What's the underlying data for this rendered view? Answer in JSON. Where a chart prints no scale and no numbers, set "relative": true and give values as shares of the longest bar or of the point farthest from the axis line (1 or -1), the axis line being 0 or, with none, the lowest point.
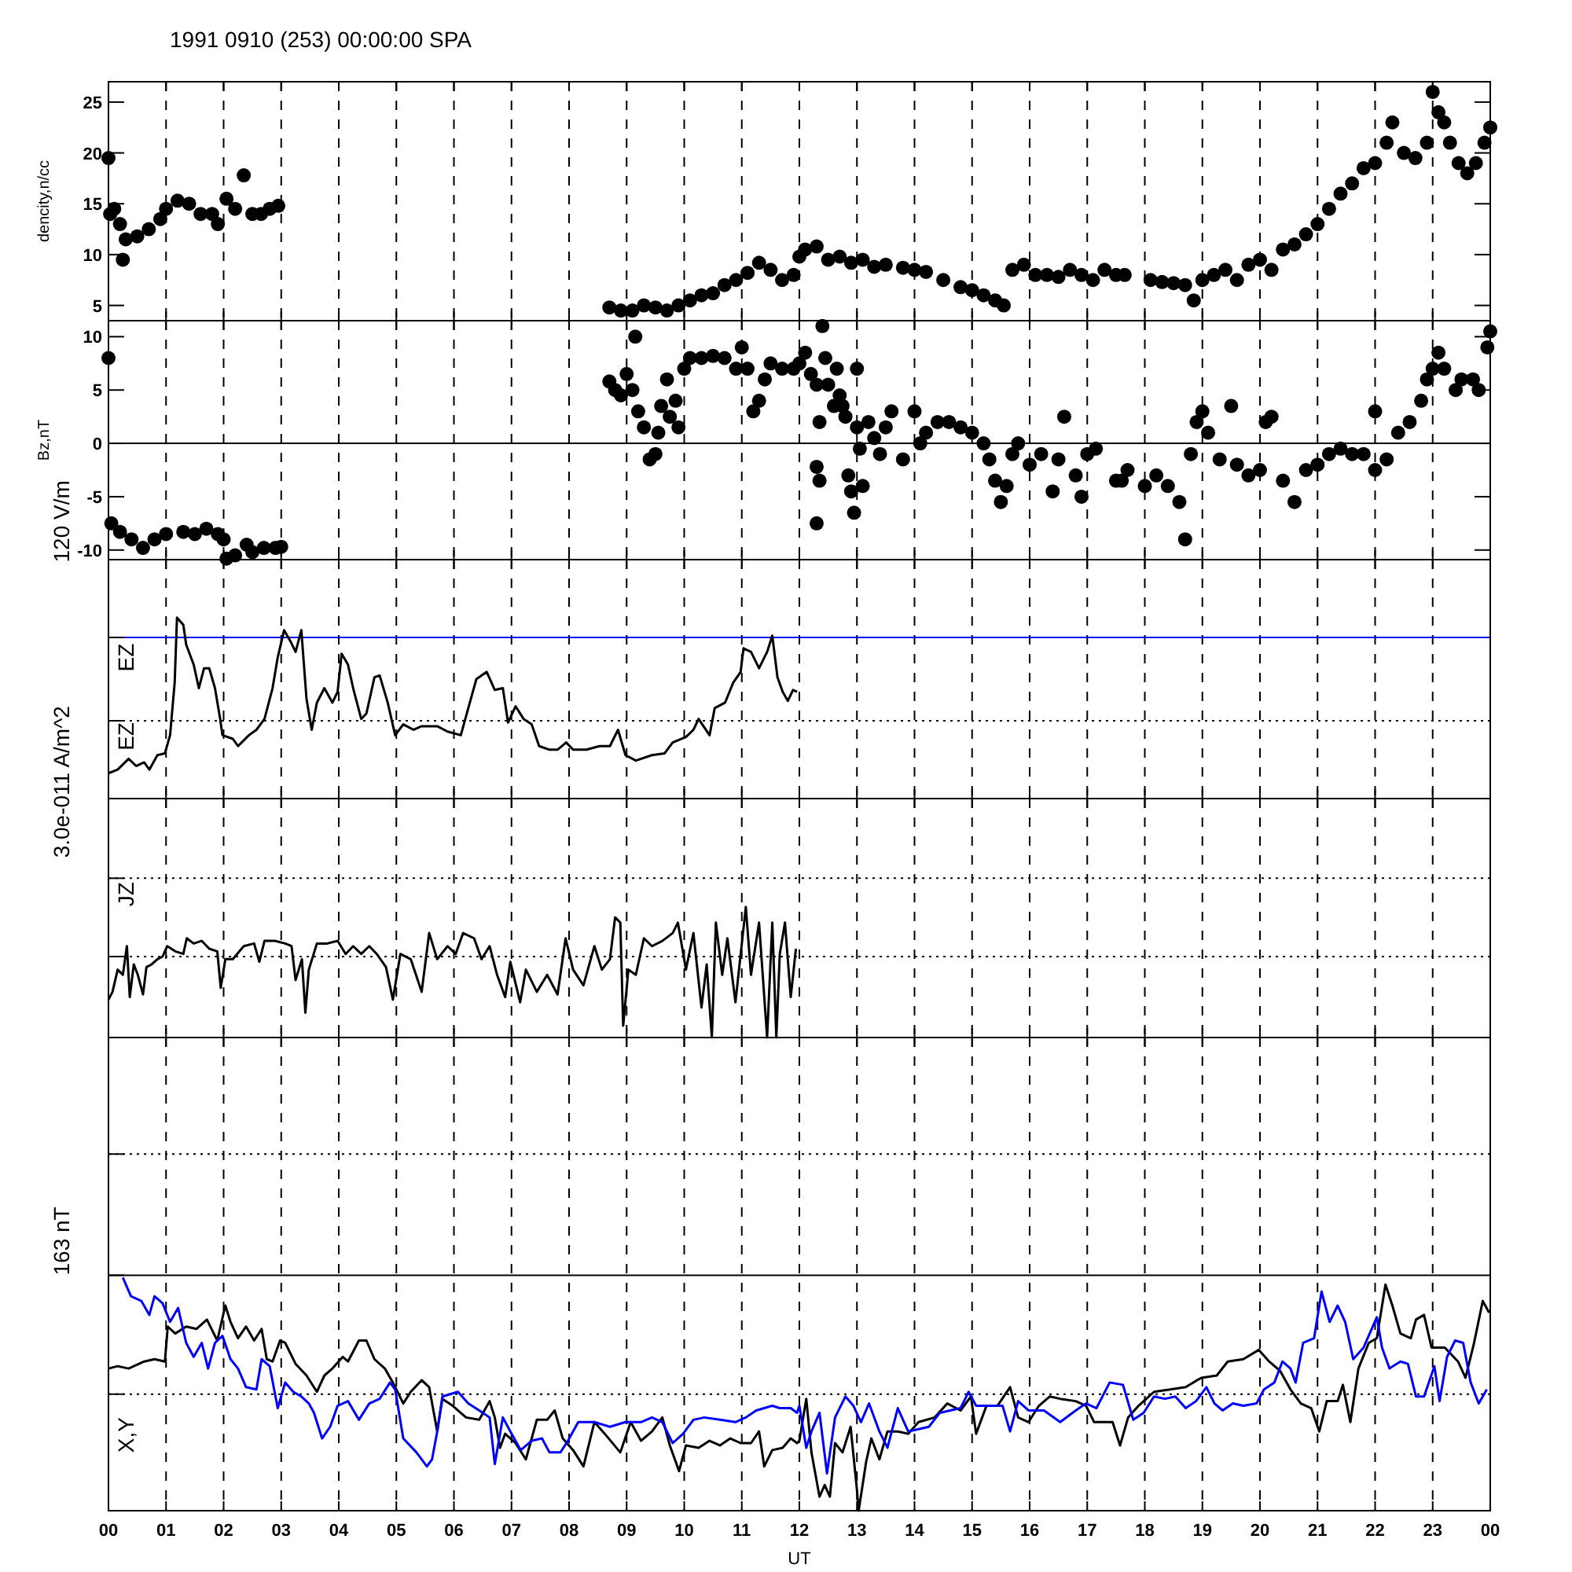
{
  "chart_data": [
    {
      "type": "scatter",
      "title": "1991 0910 (253) 00:00:00 SPA",
      "ylabel": "dencity,n/cc",
      "marker": "circle",
      "grid": "x",
      "tick_labels": "y",
      "xlim": [
        0,
        24
      ],
      "ylim": [
        3.5,
        27
      ],
      "yticks": [
        5,
        10,
        15,
        20,
        25
      ],
      "xticks": [
        {
          "value": 0,
          "label": null
        },
        {
          "value": 1,
          "label": null
        },
        {
          "value": 2,
          "label": null
        },
        {
          "value": 3,
          "label": null
        },
        {
          "value": 4,
          "label": null
        },
        {
          "value": 5,
          "label": null
        },
        {
          "value": 6,
          "label": null
        },
        {
          "value": 7,
          "label": null
        },
        {
          "value": 8,
          "label": null
        },
        {
          "value": 9,
          "label": null
        },
        {
          "value": 10,
          "label": null
        },
        {
          "value": 11,
          "label": null
        },
        {
          "value": 12,
          "label": null
        },
        {
          "value": 13,
          "label": null
        },
        {
          "value": 14,
          "label": null
        },
        {
          "value": 15,
          "label": null
        },
        {
          "value": 16,
          "label": null
        },
        {
          "value": 17,
          "label": null
        },
        {
          "value": 18,
          "label": null
        },
        {
          "value": 19,
          "label": null
        },
        {
          "value": 20,
          "label": null
        },
        {
          "value": 21,
          "label": null
        },
        {
          "value": 22,
          "label": null
        },
        {
          "value": 23,
          "label": null
        },
        {
          "value": 24,
          "label": null
        }
      ],
      "series": [
        {
          "color": "#000000",
          "x": [
            0.0,
            0.03,
            0.1,
            0.2,
            0.25,
            0.3,
            0.5,
            0.7,
            0.9,
            1.0,
            1.2,
            1.4,
            1.6,
            1.8,
            1.9,
            2.05,
            2.2,
            2.35,
            2.5,
            2.65,
            2.8,
            2.95,
            8.7,
            8.9,
            9.1,
            9.3,
            9.5,
            9.7,
            9.9,
            10.1,
            10.3,
            10.5,
            10.7,
            10.9,
            11.1,
            11.3,
            11.5,
            11.7,
            11.9,
            12.0,
            12.1,
            12.3,
            12.5,
            12.7,
            12.9,
            13.1,
            13.3,
            13.5,
            13.8,
            14.0,
            14.2,
            14.5,
            14.8,
            15.0,
            15.2,
            15.4,
            15.55,
            15.7,
            15.9,
            16.1,
            16.3,
            16.5,
            16.7,
            16.9,
            17.1,
            17.3,
            17.5,
            17.65,
            18.1,
            18.3,
            18.5,
            18.7,
            18.85,
            19.0,
            19.2,
            19.4,
            19.6,
            19.8,
            20.0,
            20.2,
            20.4,
            20.6,
            20.8,
            21.0,
            21.2,
            21.4,
            21.6,
            21.8,
            22.0,
            22.2,
            22.3,
            22.5,
            22.7,
            22.9,
            23.0,
            23.1,
            23.2,
            23.3,
            23.45,
            23.6,
            23.75,
            23.9,
            24.0
          ],
          "values": [
            19.5,
            14,
            14.5,
            13,
            9.5,
            11.5,
            11.8,
            12.5,
            13.5,
            14.5,
            15.3,
            15,
            14,
            14,
            13,
            15.5,
            14.5,
            17.8,
            14,
            14,
            14.5,
            14.8,
            4.8,
            4.5,
            4.5,
            5,
            4.8,
            4.5,
            5,
            5.5,
            6,
            6.2,
            7,
            7.5,
            8.2,
            9.2,
            8.5,
            7.5,
            8,
            9.8,
            10.5,
            10.8,
            9.5,
            9.8,
            9.2,
            9.5,
            8.8,
            9,
            8.7,
            8.5,
            8.3,
            7.5,
            6.8,
            6.5,
            6,
            5.5,
            5,
            8.5,
            9,
            8,
            8,
            7.8,
            8.5,
            8,
            7.5,
            8.5,
            8,
            8,
            7.5,
            7.3,
            7.2,
            7,
            5.5,
            7.5,
            8,
            8.5,
            7.5,
            9,
            9.5,
            8.5,
            10.5,
            11,
            12,
            13,
            14.5,
            16,
            17,
            18.5,
            19,
            21,
            23,
            20,
            19.5,
            21,
            26,
            24,
            23,
            21,
            19,
            18,
            19,
            21,
            22.5
          ]
        }
      ]
    },
    {
      "type": "scatter",
      "ylabel": "Bz,nT",
      "marker": "circle",
      "grid": "x",
      "tick_labels": "y",
      "xlim": [
        0,
        24
      ],
      "ylim": [
        -10.9,
        11.5
      ],
      "yticks": [
        -10,
        -5,
        0,
        5,
        10
      ],
      "xticks": [
        {
          "value": 0,
          "label": null
        },
        {
          "value": 1,
          "label": null
        },
        {
          "value": 2,
          "label": null
        },
        {
          "value": 3,
          "label": null
        },
        {
          "value": 4,
          "label": null
        },
        {
          "value": 5,
          "label": null
        },
        {
          "value": 6,
          "label": null
        },
        {
          "value": 7,
          "label": null
        },
        {
          "value": 8,
          "label": null
        },
        {
          "value": 9,
          "label": null
        },
        {
          "value": 10,
          "label": null
        },
        {
          "value": 11,
          "label": null
        },
        {
          "value": 12,
          "label": null
        },
        {
          "value": 13,
          "label": null
        },
        {
          "value": 14,
          "label": null
        },
        {
          "value": 15,
          "label": null
        },
        {
          "value": 16,
          "label": null
        },
        {
          "value": 17,
          "label": null
        },
        {
          "value": 18,
          "label": null
        },
        {
          "value": 19,
          "label": null
        },
        {
          "value": 20,
          "label": null
        },
        {
          "value": 21,
          "label": null
        },
        {
          "value": 22,
          "label": null
        },
        {
          "value": 23,
          "label": null
        },
        {
          "value": 24,
          "label": null
        }
      ],
      "ref_lines": [
        {
          "axis": "y",
          "value": 0,
          "color": "#000000",
          "line_style": "solid"
        }
      ],
      "series": [
        {
          "color": "#000000",
          "x": [
            0.0,
            0.05,
            0.2,
            0.4,
            0.6,
            0.8,
            1.0,
            1.3,
            1.5,
            1.7,
            1.9,
            2.0,
            2.05,
            2.2,
            2.4,
            2.5,
            2.7,
            2.9,
            3.0,
            8.7,
            8.8,
            8.9,
            9.0,
            9.1,
            9.15,
            9.2,
            9.3,
            9.4,
            9.5,
            9.55,
            9.6,
            9.7,
            9.75,
            9.85,
            9.9,
            10.0,
            10.1,
            10.3,
            10.5,
            10.7,
            10.9,
            11.0,
            11.1,
            11.2,
            11.3,
            11.4,
            11.5,
            11.7,
            11.9,
            12.0,
            12.1,
            12.2,
            12.3,
            12.35,
            12.4,
            12.45,
            12.5,
            12.6,
            12.65,
            12.7,
            12.75,
            12.8,
            12.3,
            12.35,
            12.3,
            12.85,
            12.9,
            12.95,
            13.0,
            13.0,
            13.05,
            13.1,
            13.2,
            13.3,
            13.4,
            13.5,
            13.6,
            13.8,
            14.0,
            14.1,
            14.2,
            14.4,
            14.6,
            14.8,
            15.0,
            15.2,
            15.3,
            15.4,
            15.5,
            15.6,
            15.7,
            15.8,
            16.0,
            16.2,
            16.4,
            16.5,
            16.6,
            16.8,
            16.9,
            17.0,
            17.15,
            17.5,
            17.6,
            17.7,
            18.0,
            18.2,
            18.4,
            18.6,
            18.7,
            18.8,
            18.9,
            19.0,
            19.1,
            19.3,
            19.5,
            19.6,
            19.8,
            20.0,
            20.1,
            20.2,
            20.4,
            20.6,
            20.8,
            21.0,
            21.2,
            21.4,
            21.6,
            21.8,
            22.0,
            22.0,
            22.2,
            22.4,
            22.6,
            22.8,
            22.9,
            23.0,
            23.1,
            23.2,
            23.4,
            23.5,
            23.7,
            23.8,
            23.95,
            24.0
          ],
          "values": [
            8,
            -7.5,
            -8.3,
            -9,
            -9.8,
            -9,
            -8.5,
            -8.3,
            -8.5,
            -8,
            -8.5,
            -9,
            -10.8,
            -10.5,
            -9.5,
            -10.2,
            -9.8,
            -9.8,
            -9.7,
            5.8,
            5,
            4.5,
            6.5,
            5,
            10,
            3,
            1.5,
            -1.5,
            -1,
            1,
            3.5,
            6,
            2.5,
            4,
            1.5,
            7,
            8,
            8,
            8.2,
            8,
            7,
            9,
            7,
            3,
            4,
            6,
            7.5,
            7,
            7,
            7.5,
            8.5,
            6.5,
            5.5,
            2,
            11,
            8,
            5.5,
            3.5,
            7,
            4.5,
            3.5,
            2.5,
            -2.2,
            -3.5,
            -7.5,
            -3,
            -4.5,
            -6.5,
            7,
            1.5,
            -0.5,
            -4,
            2,
            0.5,
            -1,
            1.5,
            3,
            -1.5,
            3,
            0,
            1,
            2,
            2,
            1.5,
            1,
            0,
            -1.5,
            -3.5,
            -5.5,
            -4,
            -1,
            0,
            -2,
            -1,
            -4.5,
            -1.5,
            2.5,
            -3,
            -5,
            -1,
            -0.5,
            -3.5,
            -3.5,
            -2.5,
            -4,
            -3,
            -4,
            -5.5,
            -9,
            -1,
            2,
            3,
            1,
            -1.5,
            3.5,
            -2,
            -3,
            -2.5,
            2,
            2.5,
            -3.5,
            -5.5,
            -2.5,
            -2,
            -1,
            -0.5,
            -1,
            -1,
            -2.5,
            3,
            -1.5,
            1,
            2,
            4,
            6,
            7,
            8.5,
            7,
            5,
            6,
            6,
            5,
            9,
            10.5
          ]
        }
      ]
    },
    {
      "type": "line",
      "ylabel": "EZ",
      "relative": true,
      "grid": "x",
      "tick_labels": false,
      "xlim": [
        0,
        24
      ],
      "xticks": [
        {
          "value": 0,
          "label": null
        },
        {
          "value": 1,
          "label": null
        },
        {
          "value": 2,
          "label": null
        },
        {
          "value": 3,
          "label": null
        },
        {
          "value": 4,
          "label": null
        },
        {
          "value": 5,
          "label": null
        },
        {
          "value": 6,
          "label": null
        },
        {
          "value": 7,
          "label": null
        },
        {
          "value": 8,
          "label": null
        },
        {
          "value": 9,
          "label": null
        },
        {
          "value": 10,
          "label": null
        },
        {
          "value": 11,
          "label": null
        },
        {
          "value": 12,
          "label": null
        },
        {
          "value": 13,
          "label": null
        },
        {
          "value": 14,
          "label": null
        },
        {
          "value": 15,
          "label": null
        },
        {
          "value": 16,
          "label": null
        },
        {
          "value": 17,
          "label": null
        },
        {
          "value": 18,
          "label": null
        },
        {
          "value": 19,
          "label": null
        },
        {
          "value": 20,
          "label": null
        },
        {
          "value": 21,
          "label": null
        },
        {
          "value": 22,
          "label": null
        },
        {
          "value": 23,
          "label": null
        },
        {
          "value": 24,
          "label": null
        }
      ],
      "ref_lines": [
        {
          "axis": "y",
          "value": 0.89,
          "color": "#0000ff",
          "line_style": "solid"
        },
        {
          "axis": "y",
          "value": 0.43,
          "color": "#000000",
          "line_style": "dotted"
        }
      ],
      "annotations": [
        "120 V/m",
        "EZ"
      ],
      "series": [
        {
          "color": "#000000",
          "x": [
            0,
            0.16,
            0.35,
            0.48,
            0.62,
            0.71,
            0.85,
            0.98,
            1.07,
            1.15,
            1.19,
            1.3,
            1.35,
            1.48,
            1.57,
            1.66,
            1.75,
            1.85,
            1.94,
            1.98,
            2.16,
            2.25,
            2.44,
            2.57,
            2.71,
            2.85,
            2.94,
            3.05,
            3.16,
            3.25,
            3.35,
            3.44,
            3.53,
            3.62,
            3.75,
            3.89,
            3.98,
            4.05,
            4.16,
            4.25,
            4.39,
            4.48,
            4.62,
            4.71,
            4.85,
            4.98,
            5.12,
            5.3,
            5.44,
            5.71,
            5.89,
            6.12,
            6.25,
            6.39,
            6.57,
            6.71,
            6.85,
            6.94,
            7.07,
            7.21,
            7.35,
            7.48,
            7.66,
            7.8,
            7.95,
            8.07,
            8.3,
            8.53,
            8.71,
            8.85,
            8.98,
            9.16,
            9.44,
            9.66,
            9.8,
            10.03,
            10.16,
            10.25,
            10.44,
            10.53,
            10.71,
            10.85,
            10.98,
            11.03,
            11.16,
            11.3,
            11.44,
            11.53,
            11.62,
            11.71,
            11.8,
            11.89,
            11.96
          ],
          "values": [
            0.14,
            0.16,
            0.22,
            0.18,
            0.2,
            0.16,
            0.24,
            0.25,
            0.35,
            0.64,
            1,
            0.96,
            0.85,
            0.74,
            0.61,
            0.72,
            0.72,
            0.61,
            0.44,
            0.35,
            0.33,
            0.29,
            0.35,
            0.38,
            0.44,
            0.61,
            0.78,
            0.93,
            0.87,
            0.81,
            0.93,
            0.55,
            0.38,
            0.53,
            0.61,
            0.53,
            0.59,
            0.8,
            0.74,
            0.61,
            0.44,
            0.47,
            0.67,
            0.68,
            0.53,
            0.35,
            0.41,
            0.38,
            0.4,
            0.4,
            0.37,
            0.35,
            0.5,
            0.66,
            0.7,
            0.6,
            0.61,
            0.42,
            0.51,
            0.44,
            0.41,
            0.29,
            0.27,
            0.27,
            0.31,
            0.27,
            0.27,
            0.29,
            0.29,
            0.38,
            0.24,
            0.21,
            0.24,
            0.25,
            0.31,
            0.34,
            0.38,
            0.44,
            0.35,
            0.5,
            0.53,
            0.64,
            0.7,
            0.83,
            0.81,
            0.72,
            0.81,
            0.9,
            0.67,
            0.59,
            0.54,
            0.6,
            0.59
          ]
        }
      ]
    },
    {
      "type": "line",
      "ylabel": "JZ",
      "relative": true,
      "grid": "x",
      "tick_labels": false,
      "xlim": [
        0,
        24
      ],
      "xticks": [
        {
          "value": 0,
          "label": null
        },
        {
          "value": 1,
          "label": null
        },
        {
          "value": 2,
          "label": null
        },
        {
          "value": 3,
          "label": null
        },
        {
          "value": 4,
          "label": null
        },
        {
          "value": 5,
          "label": null
        },
        {
          "value": 6,
          "label": null
        },
        {
          "value": 7,
          "label": null
        },
        {
          "value": 8,
          "label": null
        },
        {
          "value": 9,
          "label": null
        },
        {
          "value": 10,
          "label": null
        },
        {
          "value": 11,
          "label": null
        },
        {
          "value": 12,
          "label": null
        },
        {
          "value": 13,
          "label": null
        },
        {
          "value": 14,
          "label": null
        },
        {
          "value": 15,
          "label": null
        },
        {
          "value": 16,
          "label": null
        },
        {
          "value": 17,
          "label": null
        },
        {
          "value": 18,
          "label": null
        },
        {
          "value": 19,
          "label": null
        },
        {
          "value": 20,
          "label": null
        },
        {
          "value": 21,
          "label": null
        },
        {
          "value": 22,
          "label": null
        },
        {
          "value": 23,
          "label": null
        },
        {
          "value": 24,
          "label": null
        }
      ],
      "ref_lines": [
        {
          "axis": "y",
          "value": 1.22,
          "color": "#000000",
          "line_style": "dotted"
        },
        {
          "axis": "y",
          "value": 0.62,
          "color": "#000000",
          "line_style": "dotted"
        }
      ],
      "annotations": [
        "3.0e-011 A/m^2"
      ],
      "series": [
        {
          "color": "#000000",
          "x": [
            0,
            0.07,
            0.16,
            0.25,
            0.32,
            0.37,
            0.44,
            0.51,
            0.6,
            0.66,
            0.75,
            0.85,
            0.94,
            1.02,
            1.16,
            1.3,
            1.36,
            1.48,
            1.62,
            1.75,
            1.89,
            1.95,
            2.03,
            2.16,
            2.35,
            2.53,
            2.62,
            2.71,
            2.89,
            3.07,
            3.18,
            3.25,
            3.36,
            3.42,
            3.48,
            3.62,
            3.8,
            3.98,
            4.12,
            4.25,
            4.39,
            4.53,
            4.66,
            4.82,
            4.94,
            5.07,
            5.25,
            5.44,
            5.57,
            5.71,
            5.89,
            6.03,
            6.16,
            6.35,
            6.48,
            6.62,
            6.75,
            6.89,
            6.98,
            7.15,
            7.25,
            7.44,
            7.62,
            7.8,
            7.94,
            8.07,
            8.25,
            8.44,
            8.57,
            8.71,
            8.8,
            8.89,
            8.94,
            9.03,
            9.16,
            9.3,
            9.44,
            9.62,
            9.8,
            9.89,
            10.03,
            10.16,
            10.3,
            10.39,
            10.48,
            10.55,
            10.66,
            10.75,
            10.89,
            11.07,
            11.16,
            11.3,
            11.44,
            11.53,
            11.6,
            11.66,
            11.75,
            11.85,
            11.94
          ],
          "values": [
            0.29,
            0.35,
            0.52,
            0.48,
            0.7,
            0.31,
            0.56,
            0.48,
            0.33,
            0.54,
            0.56,
            0.6,
            0.62,
            0.7,
            0.66,
            0.64,
            0.76,
            0.72,
            0.74,
            0.68,
            0.66,
            0.38,
            0.6,
            0.6,
            0.7,
            0.72,
            0.58,
            0.74,
            0.74,
            0.72,
            0.7,
            0.44,
            0.6,
            0.19,
            0.52,
            0.72,
            0.72,
            0.74,
            0.64,
            0.7,
            0.64,
            0.7,
            0.64,
            0.54,
            0.29,
            0.64,
            0.6,
            0.35,
            0.8,
            0.6,
            0.7,
            0.64,
            0.8,
            0.76,
            0.6,
            0.7,
            0.48,
            0.31,
            0.58,
            0.27,
            0.52,
            0.35,
            0.48,
            0.33,
            0.76,
            0.52,
            0.4,
            0.7,
            0.52,
            0.6,
            0.92,
            0.88,
            0.09,
            0.52,
            0.48,
            0.76,
            0.7,
            0.74,
            0.8,
            0.88,
            0.52,
            0.8,
            0.23,
            0.56,
            0,
            0.88,
            0.48,
            0.76,
            0.27,
            1,
            0.48,
            0.88,
            0,
            0.88,
            0,
            0.64,
            0.88,
            0.31,
            0.68
          ]
        }
      ]
    },
    {
      "type": "line",
      "ylabel": "X,Y",
      "xlabel": "UT",
      "relative": true,
      "grid": "x",
      "tick_labels": "x",
      "xlim": [
        0,
        24
      ],
      "xticks": [
        {
          "value": 0,
          "label": "00"
        },
        {
          "value": 1,
          "label": "01"
        },
        {
          "value": 2,
          "label": "02"
        },
        {
          "value": 3,
          "label": "03"
        },
        {
          "value": 4,
          "label": "04"
        },
        {
          "value": 5,
          "label": "05"
        },
        {
          "value": 6,
          "label": "06"
        },
        {
          "value": 7,
          "label": "07"
        },
        {
          "value": 8,
          "label": "08"
        },
        {
          "value": 9,
          "label": "09"
        },
        {
          "value": 10,
          "label": "10"
        },
        {
          "value": 11,
          "label": "11"
        },
        {
          "value": 12,
          "label": "12"
        },
        {
          "value": 13,
          "label": "13"
        },
        {
          "value": 14,
          "label": "14"
        },
        {
          "value": 15,
          "label": "15"
        },
        {
          "value": 16,
          "label": "16"
        },
        {
          "value": 17,
          "label": "17"
        },
        {
          "value": 18,
          "label": "18"
        },
        {
          "value": 19,
          "label": "19"
        },
        {
          "value": 20,
          "label": "20"
        },
        {
          "value": 21,
          "label": "21"
        },
        {
          "value": 22,
          "label": "22"
        },
        {
          "value": 23,
          "label": "23"
        },
        {
          "value": 24,
          "label": "00"
        }
      ],
      "ref_lines": [
        {
          "axis": "y",
          "value": 1.53,
          "color": "#000000",
          "line_style": "dotted"
        },
        {
          "axis": "y",
          "value": 1.01,
          "color": "#000000",
          "line_style": "solid"
        },
        {
          "axis": "y",
          "value": 0.5,
          "color": "#000000",
          "line_style": "dotted"
        }
      ],
      "annotations": [
        "163 nT"
      ],
      "series": [
        {
          "color": "#000000",
          "x": [
            0,
            0.16,
            0.35,
            0.62,
            0.8,
            0.98,
            1.03,
            1.16,
            1.35,
            1.53,
            1.71,
            1.89,
            2.03,
            2.12,
            2.25,
            2.39,
            2.53,
            2.66,
            2.75,
            2.85,
            2.98,
            3.07,
            3.25,
            3.44,
            3.62,
            3.75,
            3.89,
            4.07,
            4.16,
            4.35,
            4.48,
            4.62,
            4.8,
            4.94,
            5.12,
            5.25,
            5.44,
            5.57,
            5.71,
            5.8,
            5.98,
            6.21,
            6.44,
            6.62,
            6.71,
            6.8,
            6.89,
            7.07,
            7.25,
            7.44,
            7.62,
            7.75,
            7.89,
            8.07,
            8.25,
            8.44,
            8.62,
            8.89,
            9.07,
            9.25,
            9.44,
            9.62,
            9.75,
            9.91,
            10.03,
            10.25,
            10.44,
            10.62,
            10.8,
            10.98,
            11.16,
            11.3,
            11.39,
            11.53,
            11.71,
            11.85,
            11.96,
            12.0,
            12.12,
            12.21,
            12.35,
            12.44,
            12.53,
            12.62,
            12.75,
            12.89,
            13.0,
            13.03,
            13.16,
            13.25,
            13.39,
            13.53,
            13.71,
            13.89,
            14.07,
            14.35,
            14.57,
            14.8,
            14.98,
            15.07,
            15.25,
            15.44,
            15.66,
            15.8,
            15.98,
            16.16,
            16.35,
            16.53,
            16.8,
            16.98,
            17.12,
            17.44,
            17.57,
            17.71,
            17.89,
            18.16,
            18.44,
            18.71,
            18.98,
            19.25,
            19.44,
            19.71,
            19.98,
            20.16,
            20.35,
            20.53,
            20.71,
            20.89,
            21.03,
            21.16,
            21.35,
            21.44,
            21.57,
            21.71,
            21.89,
            22.03,
            22.18,
            22.3,
            22.44,
            22.62,
            22.71,
            22.85,
            22.98,
            23.21,
            23.44,
            23.57,
            23.71,
            23.87,
            23.98
          ],
          "values": [
            0.61,
            0.62,
            0.61,
            0.64,
            0.65,
            0.64,
            0.79,
            0.76,
            0.79,
            0.78,
            0.82,
            0.73,
            0.88,
            0.81,
            0.74,
            0.79,
            0.73,
            0.78,
            0.65,
            0.64,
            0.73,
            0.72,
            0.63,
            0.58,
            0.51,
            0.58,
            0.61,
            0.66,
            0.64,
            0.73,
            0.73,
            0.65,
            0.61,
            0.55,
            0.46,
            0.51,
            0.56,
            0.53,
            0.34,
            0.48,
            0.45,
            0.4,
            0.39,
            0.47,
            0.4,
            0.27,
            0.33,
            0.29,
            0.22,
            0.39,
            0.39,
            0.43,
            0.31,
            0.26,
            0.19,
            0.38,
            0.33,
            0.25,
            0.38,
            0.3,
            0.34,
            0.4,
            0.28,
            0.17,
            0.28,
            0.27,
            0.3,
            0.28,
            0.31,
            0.29,
            0.29,
            0.34,
            0.19,
            0.26,
            0.27,
            0.31,
            0.29,
            0.3,
            0.48,
            0.25,
            0.06,
            0.11,
            0.06,
            0.29,
            0.25,
            0.36,
            0.09,
            0,
            0.21,
            0.31,
            0.22,
            0.34,
            0.34,
            0.33,
            0.38,
            0.4,
            0.46,
            0.43,
            0.49,
            0.33,
            0.45,
            0.45,
            0.53,
            0.4,
            0.38,
            0.45,
            0.49,
            0.48,
            0.47,
            0.45,
            0.38,
            0.38,
            0.28,
            0.4,
            0.45,
            0.51,
            0.52,
            0.53,
            0.57,
            0.58,
            0.64,
            0.65,
            0.69,
            0.64,
            0.6,
            0.52,
            0.46,
            0.44,
            0.34,
            0.47,
            0.47,
            0.54,
            0.38,
            0.61,
            0.72,
            0.74,
            0.97,
            0.88,
            0.76,
            0.74,
            0.82,
            0.84,
            0.7,
            0.7,
            0.64,
            0.57,
            0.71,
            0.9,
            0.85
          ]
        },
        {
          "color": "#0000ff",
          "x": [
            0.25,
            0.39,
            0.57,
            0.71,
            0.8,
            0.94,
            1.07,
            1.21,
            1.35,
            1.48,
            1.62,
            1.73,
            1.85,
            1.98,
            2.12,
            2.25,
            2.39,
            2.57,
            2.66,
            2.8,
            2.94,
            3.07,
            3.21,
            3.35,
            3.48,
            3.57,
            3.71,
            3.85,
            3.98,
            4.16,
            4.35,
            4.53,
            4.71,
            4.89,
            4.98,
            5.12,
            5.35,
            5.53,
            5.62,
            5.71,
            5.8,
            6.07,
            6.25,
            6.44,
            6.62,
            6.71,
            6.85,
            6.98,
            7.16,
            7.35,
            7.53,
            7.66,
            7.85,
            7.98,
            8.16,
            8.44,
            8.71,
            8.98,
            9.25,
            9.44,
            9.62,
            9.8,
            9.98,
            10.16,
            10.35,
            10.62,
            10.89,
            11.07,
            11.25,
            11.39,
            11.53,
            11.66,
            11.85,
            11.96,
            12.0,
            12.12,
            12.21,
            12.35,
            12.48,
            12.62,
            12.8,
            12.94,
            13.07,
            13.21,
            13.39,
            13.53,
            13.71,
            13.89,
            14.07,
            14.25,
            14.44,
            14.62,
            14.8,
            14.94,
            15.07,
            15.35,
            15.53,
            15.66,
            15.8,
            15.98,
            16.25,
            16.53,
            16.8,
            16.98,
            17.16,
            17.39,
            17.62,
            17.8,
            17.98,
            18.16,
            18.35,
            18.53,
            18.71,
            18.89,
            19.07,
            19.21,
            19.35,
            19.53,
            19.71,
            19.94,
            20.07,
            20.25,
            20.39,
            20.53,
            20.62,
            20.75,
            20.94,
            21.07,
            21.21,
            21.35,
            21.48,
            21.62,
            21.8,
            22.03,
            22.12,
            22.25,
            22.44,
            22.57,
            22.71,
            22.85,
            23.03,
            23.12,
            23.25,
            23.39,
            23.53,
            23.66,
            23.8,
            23.94
          ],
          "values": [
            1,
            0.92,
            0.9,
            0.84,
            0.92,
            0.89,
            0.81,
            0.87,
            0.72,
            0.66,
            0.72,
            0.61,
            0.72,
            0.75,
            0.65,
            0.61,
            0.53,
            0.52,
            0.65,
            0.62,
            0.44,
            0.55,
            0.51,
            0.49,
            0.46,
            0.42,
            0.31,
            0.36,
            0.45,
            0.47,
            0.39,
            0.46,
            0.48,
            0.55,
            0.52,
            0.31,
            0.25,
            0.19,
            0.22,
            0.34,
            0.49,
            0.51,
            0.46,
            0.43,
            0.4,
            0.2,
            0.4,
            0.34,
            0.26,
            0.3,
            0.31,
            0.25,
            0.25,
            0.3,
            0.38,
            0.38,
            0.36,
            0.38,
            0.38,
            0.4,
            0.38,
            0.29,
            0.33,
            0.39,
            0.4,
            0.39,
            0.38,
            0.4,
            0.43,
            0.44,
            0.45,
            0.44,
            0.44,
            0.42,
            0.45,
            0.27,
            0.34,
            0.42,
            0.16,
            0.4,
            0.49,
            0.45,
            0.38,
            0.46,
            0.34,
            0.27,
            0.44,
            0.34,
            0.35,
            0.36,
            0.42,
            0.43,
            0.44,
            0.51,
            0.45,
            0.45,
            0.45,
            0.34,
            0.47,
            0.43,
            0.43,
            0.38,
            0.43,
            0.46,
            0.44,
            0.55,
            0.54,
            0.39,
            0.42,
            0.49,
            0.48,
            0.49,
            0.44,
            0.47,
            0.53,
            0.46,
            0.43,
            0.46,
            0.45,
            0.46,
            0.52,
            0.55,
            0.64,
            0.61,
            0.55,
            0.72,
            0.74,
            0.94,
            0.81,
            0.88,
            0.81,
            0.65,
            0.7,
            0.83,
            0.7,
            0.61,
            0.64,
            0.63,
            0.49,
            0.49,
            0.62,
            0.47,
            0.66,
            0.73,
            0.72,
            0.55,
            0.46,
            0.52
          ]
        }
      ]
    }
  ]
}
